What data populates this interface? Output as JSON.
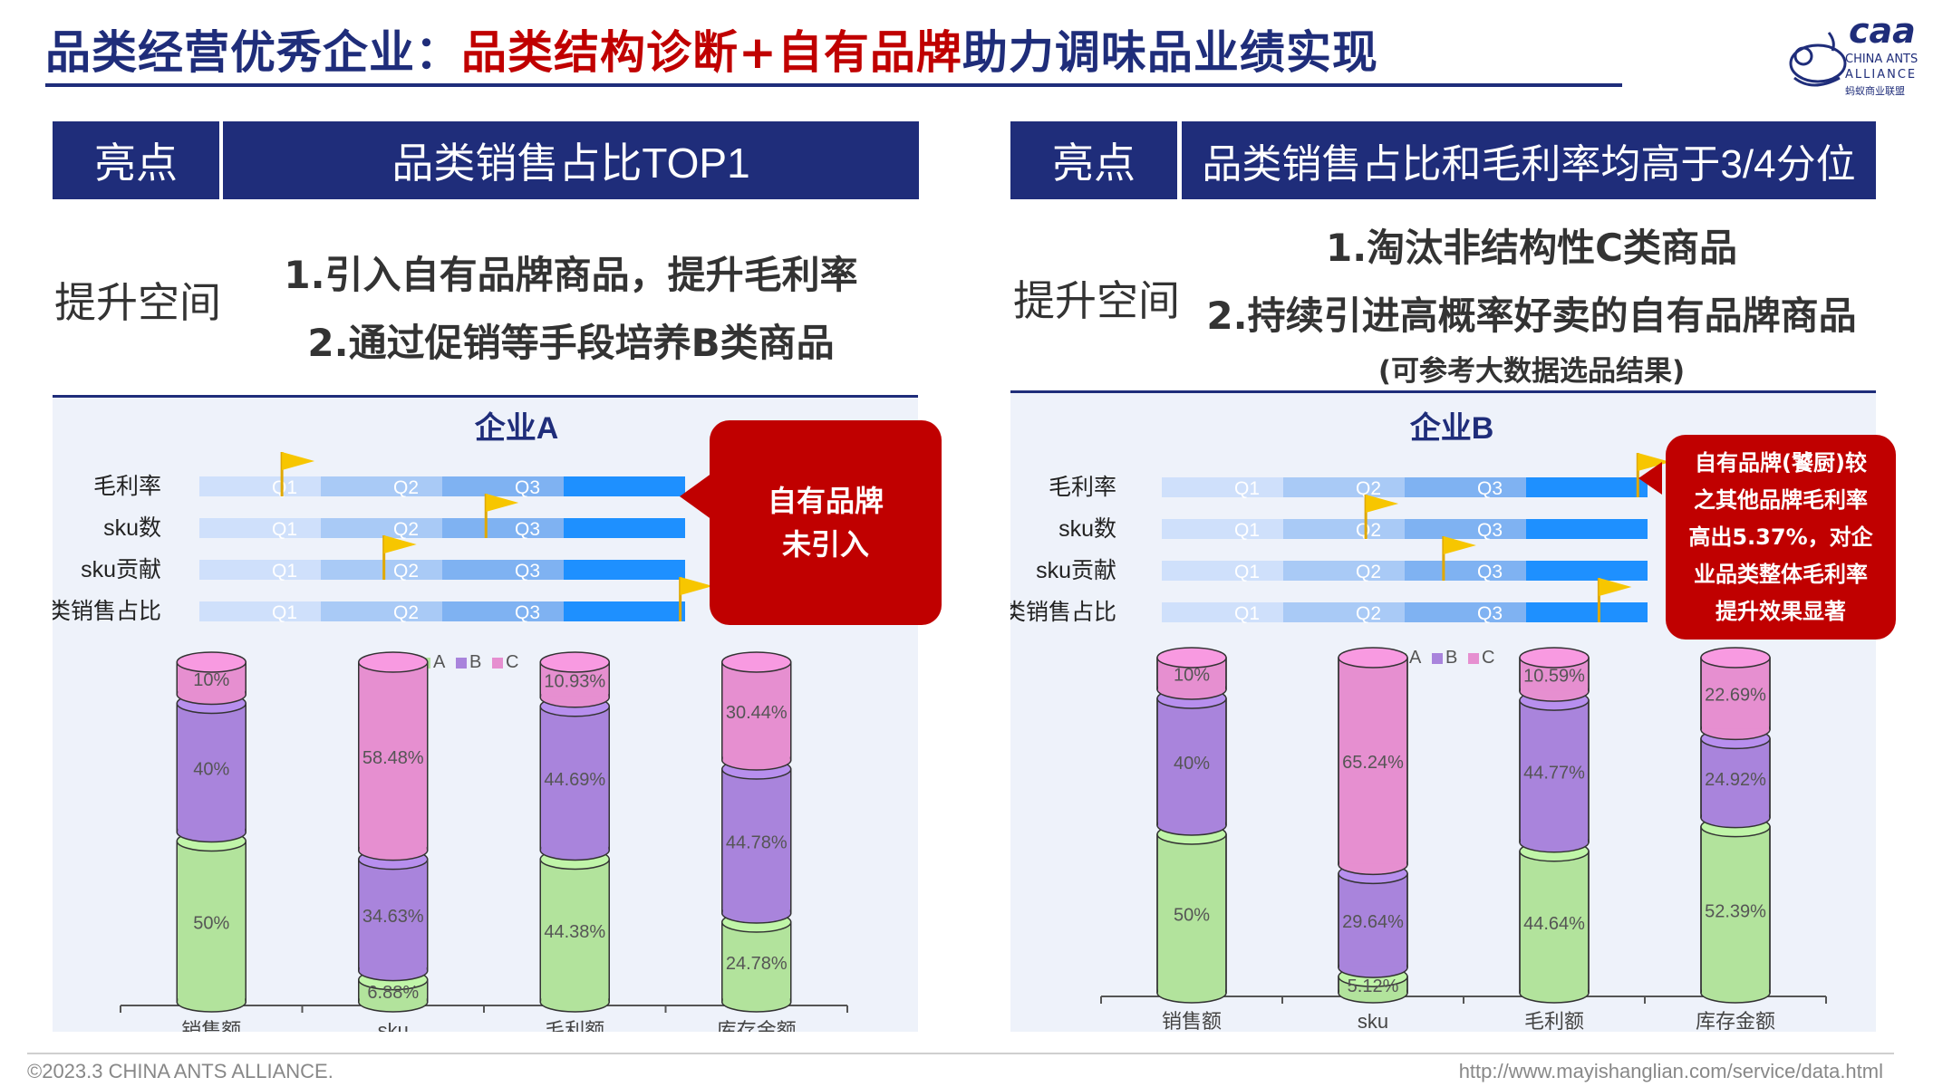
{
  "title": {
    "part1": "品类经营优秀企业：",
    "part2": "品类结构诊断+自有品牌",
    "part3": "助力调味品业绩实现"
  },
  "logo": {
    "wordmark": "caa",
    "line1": "CHINA ANTS",
    "line2": "ALLIANCE",
    "line3": "蚂蚁商业联盟"
  },
  "left": {
    "highlight_label": "亮点",
    "highlight_text": "品类销售占比TOP1",
    "space_label": "提升空间",
    "improvements": [
      "1.引入自有品牌商品，提升毛利率",
      "2.通过促销等手段培养B类商品"
    ],
    "callout": "自有品牌\n未引入"
  },
  "right": {
    "highlight_label": "亮点",
    "highlight_text": "品类销售占比和毛利率均高于3/4分位",
    "space_label": "提升空间",
    "improvements": [
      "1.淘汰非结构性C类商品",
      "2.持续引进高概率好卖的自有品牌商品"
    ],
    "note": "(可参考大数据选品结果)",
    "callout": "自有品牌(饕厨)较\n之其他品牌毛利率\n高出5.37%，对企\n业品类整体毛利率\n提升效果显著"
  },
  "colors": {
    "navy": "#1f2d7a",
    "red": "#c00000",
    "A": "#b2e39c",
    "B": "#a984dc",
    "C": "#e68fd0",
    "flag": "#f7c600"
  },
  "chart_data": [
    {
      "type": "bar",
      "subtype": "quartile-position",
      "title": "企业A",
      "quartile_labels": [
        "Q1",
        "Q2",
        "Q3"
      ],
      "categories": [
        "毛利率",
        "sku数",
        "sku贡献",
        "品类销售占比"
      ],
      "positions": [
        0.17,
        0.59,
        0.38,
        0.99
      ],
      "xlim": [
        0,
        1
      ]
    },
    {
      "type": "bar",
      "subtype": "stacked-cylinder",
      "title": "",
      "categories": [
        "销售额",
        "sku",
        "毛利额",
        "库存金额"
      ],
      "series": [
        {
          "name": "A",
          "values": [
            50,
            6.88,
            44.38,
            24.78
          ],
          "labels": [
            "50%",
            "6.88%",
            "44.38%",
            "24.78%"
          ]
        },
        {
          "name": "B",
          "values": [
            40,
            34.63,
            44.69,
            44.78
          ],
          "labels": [
            "40%",
            "34.63%",
            "44.69%",
            "44.78%"
          ]
        },
        {
          "name": "C",
          "values": [
            10,
            58.48,
            10.93,
            30.44
          ],
          "labels": [
            "10%",
            "58.48%",
            "10.93%",
            "30.44%"
          ]
        }
      ],
      "legend": "top-center",
      "ylim": [
        0,
        100
      ]
    },
    {
      "type": "bar",
      "subtype": "quartile-position",
      "title": "企业B",
      "quartile_labels": [
        "Q1",
        "Q2",
        "Q3"
      ],
      "categories": [
        "毛利率",
        "sku数",
        "sku贡献",
        "品类销售占比"
      ],
      "positions": [
        0.98,
        0.42,
        0.58,
        0.9
      ],
      "xlim": [
        0,
        1
      ]
    },
    {
      "type": "bar",
      "subtype": "stacked-cylinder",
      "title": "",
      "categories": [
        "销售额",
        "sku",
        "毛利额",
        "库存金额"
      ],
      "series": [
        {
          "name": "A",
          "values": [
            50,
            5.12,
            44.64,
            52.39
          ],
          "labels": [
            "50%",
            "5.12%",
            "44.64%",
            "52.39%"
          ]
        },
        {
          "name": "B",
          "values": [
            40,
            29.64,
            44.77,
            24.92
          ],
          "labels": [
            "40%",
            "29.64%",
            "44.77%",
            "24.92%"
          ]
        },
        {
          "name": "C",
          "values": [
            10,
            65.24,
            10.59,
            22.69
          ],
          "labels": [
            "10%",
            "65.24%",
            "10.59%",
            "22.69%"
          ]
        }
      ],
      "legend": "top-center",
      "ylim": [
        0,
        100
      ]
    }
  ],
  "footer": {
    "left": "©2023.3 CHINA ANTS ALLIANCE.",
    "right": "http://www.mayishanglian.com/service/data.html"
  }
}
